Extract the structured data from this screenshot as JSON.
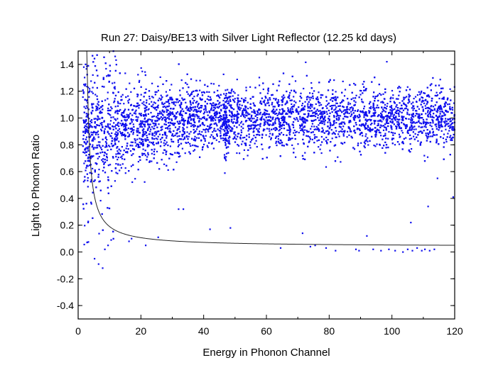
{
  "chart_data": {
    "type": "scatter",
    "title": "Run 27: Daisy/BE13 with Silver Light Reflector (12.25 kd days)",
    "xlabel": "Energy in Phonon Channel",
    "ylabel": "Light to Phonon Ratio",
    "xlim": [
      0,
      120
    ],
    "ylim": [
      -0.5,
      1.5
    ],
    "x_ticks": [
      "0",
      "20",
      "40",
      "60",
      "80",
      "100",
      "120"
    ],
    "y_ticks": [
      "-0.4",
      "-0.2",
      "0.0",
      "0.2",
      "0.4",
      "0.6",
      "0.8",
      "1.0",
      "1.2",
      "1.4"
    ],
    "x_tick_values": [
      0,
      20,
      40,
      60,
      80,
      100,
      120
    ],
    "y_tick_values": [
      -0.4,
      -0.2,
      0.0,
      0.2,
      0.4,
      0.6,
      0.8,
      1.0,
      1.2,
      1.4
    ],
    "series": [
      {
        "name": "events",
        "kind": "scatter",
        "color": "#1010ee",
        "description": "electron-recoil band centered near ratio 1.0 (spread ~0.15), broader and lower (~0.85-0.95) below 20 energy units; sparse nuclear-recoil events near ratio 0.0-0.1 at energies 60-115",
        "band": {
          "center_low_energy": 0.9,
          "center_high_energy": 1.0,
          "sigma_low_energy": 0.2,
          "sigma_high_energy": 0.11,
          "n_points": 5200
        },
        "low_ratio_points": [
          [
            6.5,
            -0.09
          ],
          [
            5.2,
            -0.05
          ],
          [
            7.8,
            -0.12
          ],
          [
            8.5,
            0.02
          ],
          [
            9.5,
            0.05
          ],
          [
            10.5,
            0.09
          ],
          [
            4.2,
            0.36
          ],
          [
            16.2,
            0.08
          ],
          [
            17.0,
            0.1
          ],
          [
            21.5,
            0.05
          ],
          [
            25.5,
            0.11
          ],
          [
            32.0,
            0.32
          ],
          [
            33.5,
            0.32
          ],
          [
            42.0,
            0.17
          ],
          [
            48.5,
            0.18
          ],
          [
            64.5,
            0.03
          ],
          [
            71.5,
            0.14
          ],
          [
            74.0,
            0.04
          ],
          [
            75.5,
            0.05
          ],
          [
            79.0,
            0.03
          ],
          [
            82.0,
            0.01
          ],
          [
            88.5,
            0.02
          ],
          [
            89.5,
            0.01
          ],
          [
            92.0,
            0.12
          ],
          [
            94.0,
            0.02
          ],
          [
            96.5,
            0.01
          ],
          [
            99.0,
            0.02
          ],
          [
            101.0,
            0.01
          ],
          [
            103.5,
            0.0
          ],
          [
            105.0,
            0.02
          ],
          [
            106.5,
            0.01
          ],
          [
            108.0,
            0.03
          ],
          [
            109.5,
            0.01
          ],
          [
            110.5,
            0.02
          ],
          [
            112.0,
            0.01
          ],
          [
            113.5,
            0.02
          ],
          [
            111.5,
            0.34
          ],
          [
            106.0,
            0.22
          ],
          [
            119.5,
            0.41
          ],
          [
            114.5,
            0.55
          ]
        ]
      },
      {
        "name": "threshold curve",
        "kind": "line",
        "color": "#222222",
        "formula": "ratio = 1.2 / (E - 2) + 0.04",
        "x_start": 2.5,
        "x_end": 120
      }
    ]
  }
}
